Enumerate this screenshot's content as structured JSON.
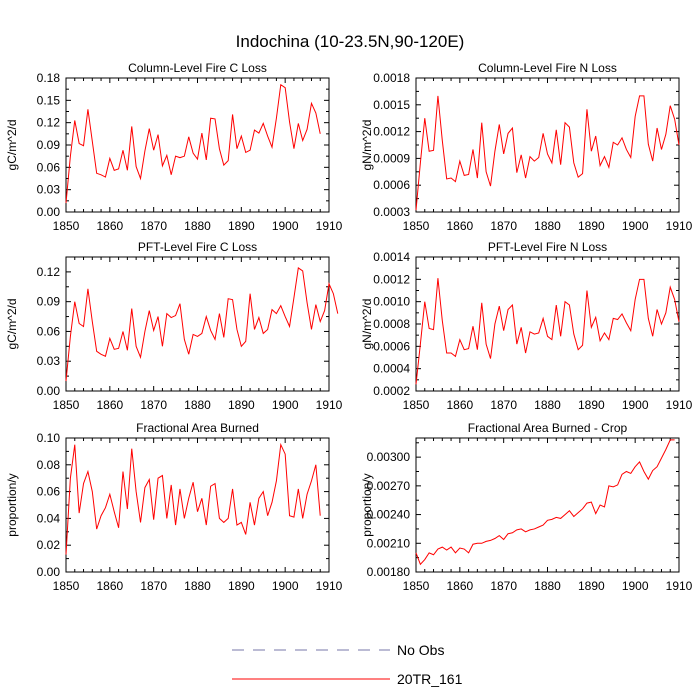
{
  "figure_title": "Indochina (10-23.5N,90-120E)",
  "legend": {
    "items": [
      {
        "label": "No Obs",
        "style": "dashed",
        "color": "#7777aa"
      },
      {
        "label": "20TR_161",
        "style": "solid",
        "color": "#ff0000"
      }
    ]
  },
  "chart_data": [
    {
      "type": "line",
      "title": "Column-Level Fire C Loss",
      "xlabel": "",
      "ylabel": "gC/m^2/d",
      "xlim": [
        1850,
        1910
      ],
      "ylim": [
        0,
        0.18
      ],
      "xticks": [
        1850,
        1860,
        1870,
        1880,
        1890,
        1900,
        1910
      ],
      "xtick_labels": [
        "1850",
        "1860",
        "1870",
        "1880",
        "1890",
        "1900",
        "1910"
      ],
      "yticks": [
        0,
        0.03,
        0.06,
        0.09,
        0.12,
        0.15,
        0.18
      ],
      "ytick_labels": [
        "0.00",
        "0.03",
        "0.06",
        "0.09",
        "0.12",
        "0.15",
        "0.18"
      ],
      "x_start": 1850,
      "series": [
        {
          "name": "20TR_161",
          "color": "#ff0000",
          "values": [
            0.012,
            0.075,
            0.123,
            0.092,
            0.089,
            0.138,
            0.095,
            0.052,
            0.05,
            0.047,
            0.072,
            0.056,
            0.058,
            0.083,
            0.056,
            0.115,
            0.061,
            0.045,
            0.082,
            0.112,
            0.083,
            0.104,
            0.062,
            0.076,
            0.05,
            0.075,
            0.073,
            0.075,
            0.101,
            0.079,
            0.071,
            0.106,
            0.07,
            0.126,
            0.125,
            0.085,
            0.063,
            0.069,
            0.131,
            0.085,
            0.102,
            0.08,
            0.083,
            0.11,
            0.106,
            0.119,
            0.102,
            0.087,
            0.126,
            0.171,
            0.167,
            0.121,
            0.085,
            0.119,
            0.096,
            0.111,
            0.146,
            0.133,
            0.105
          ]
        }
      ]
    },
    {
      "type": "line",
      "title": "Column-Level Fire N Loss",
      "xlabel": "",
      "ylabel": "gN/m^2/d",
      "xlim": [
        1850,
        1910
      ],
      "ylim": [
        0.0003,
        0.0018
      ],
      "xticks": [
        1850,
        1860,
        1870,
        1880,
        1890,
        1900,
        1910
      ],
      "xtick_labels": [
        "1850",
        "1860",
        "1870",
        "1880",
        "1890",
        "1900",
        "1910"
      ],
      "yticks": [
        0.0003,
        0.0006,
        0.0009,
        0.0012,
        0.0015,
        0.0018
      ],
      "ytick_labels": [
        "0.0003",
        "0.0006",
        "0.0009",
        "0.0012",
        "0.0015",
        "0.0018"
      ],
      "x_start": 1850,
      "series": [
        {
          "name": "20TR_161",
          "color": "#ff0000",
          "values": [
            0.00032,
            0.00085,
            0.00135,
            0.00098,
            0.00099,
            0.0016,
            0.0011,
            0.00067,
            0.00068,
            0.00064,
            0.00087,
            0.00071,
            0.00072,
            0.001,
            0.00068,
            0.0013,
            0.00075,
            0.00059,
            0.00098,
            0.00128,
            0.00095,
            0.00118,
            0.00124,
            0.00074,
            0.00094,
            0.00068,
            0.00092,
            0.00087,
            0.00091,
            0.00118,
            0.00095,
            0.00085,
            0.00122,
            0.00083,
            0.0013,
            0.00125,
            0.00085,
            0.00069,
            0.00073,
            0.00145,
            0.00098,
            0.00115,
            0.00082,
            0.00092,
            0.0008,
            0.00108,
            0.00105,
            0.00113,
            0.001,
            0.00091,
            0.00137,
            0.0016,
            0.0016,
            0.00106,
            0.00087,
            0.00124,
            0.001,
            0.00117,
            0.00149,
            0.00134,
            0.00105
          ]
        }
      ]
    },
    {
      "type": "line",
      "title": "PFT-Level Fire C Loss",
      "xlabel": "",
      "ylabel": "gC/m^2/d",
      "xlim": [
        1850,
        1910
      ],
      "ylim": [
        0,
        0.135
      ],
      "xticks": [
        1850,
        1860,
        1870,
        1880,
        1890,
        1900,
        1910
      ],
      "xtick_labels": [
        "1850",
        "1860",
        "1870",
        "1880",
        "1890",
        "1900",
        "1910"
      ],
      "yticks": [
        0,
        0.03,
        0.06,
        0.09,
        0.12
      ],
      "ytick_labels": [
        "0.00",
        "0.03",
        "0.06",
        "0.09",
        "0.12"
      ],
      "x_start": 1850,
      "series": [
        {
          "name": "20TR_161",
          "color": "#ff0000",
          "values": [
            0.01,
            0.055,
            0.09,
            0.068,
            0.065,
            0.103,
            0.07,
            0.04,
            0.037,
            0.035,
            0.053,
            0.042,
            0.043,
            0.06,
            0.041,
            0.083,
            0.045,
            0.034,
            0.06,
            0.081,
            0.061,
            0.075,
            0.045,
            0.078,
            0.074,
            0.076,
            0.088,
            0.052,
            0.037,
            0.057,
            0.055,
            0.058,
            0.075,
            0.061,
            0.052,
            0.078,
            0.054,
            0.093,
            0.092,
            0.062,
            0.045,
            0.05,
            0.098,
            0.062,
            0.074,
            0.058,
            0.062,
            0.082,
            0.078,
            0.086,
            0.075,
            0.065,
            0.094,
            0.124,
            0.121,
            0.089,
            0.062,
            0.087,
            0.07,
            0.081,
            0.108,
            0.098,
            0.078
          ]
        }
      ]
    },
    {
      "type": "line",
      "title": "PFT-Level Fire N Loss",
      "xlabel": "",
      "ylabel": "gN/m^2/d",
      "xlim": [
        1850,
        1910
      ],
      "ylim": [
        0.0002,
        0.0014
      ],
      "xticks": [
        1850,
        1860,
        1870,
        1880,
        1890,
        1900,
        1910
      ],
      "xtick_labels": [
        "1850",
        "1860",
        "1870",
        "1880",
        "1890",
        "1900",
        "1910"
      ],
      "yticks": [
        0.0002,
        0.0004,
        0.0006,
        0.0008,
        0.001,
        0.0012,
        0.0014
      ],
      "ytick_labels": [
        "0.0002",
        "0.0004",
        "0.0006",
        "0.0008",
        "0.0010",
        "0.0012",
        "0.0014"
      ],
      "x_start": 1850,
      "series": [
        {
          "name": "20TR_161",
          "color": "#ff0000",
          "values": [
            0.00026,
            0.00062,
            0.001,
            0.00076,
            0.00075,
            0.00121,
            0.00083,
            0.00054,
            0.00054,
            0.00051,
            0.00066,
            0.00057,
            0.00058,
            0.00078,
            0.00057,
            0.00099,
            0.00062,
            0.00049,
            0.0008,
            0.00096,
            0.00074,
            0.00093,
            0.00097,
            0.00062,
            0.00077,
            0.00054,
            0.00073,
            0.00071,
            0.00072,
            0.00085,
            0.00069,
            0.00066,
            0.00097,
            0.00069,
            0.001,
            0.00097,
            0.00071,
            0.00057,
            0.00061,
            0.0011,
            0.00077,
            0.00086,
            0.00065,
            0.00072,
            0.00066,
            0.00085,
            0.00084,
            0.00089,
            0.00081,
            0.00074,
            0.00102,
            0.0012,
            0.0012,
            0.00085,
            0.00069,
            0.00093,
            0.0008,
            0.0009,
            0.00113,
            0.00102,
            0.00082
          ]
        }
      ]
    },
    {
      "type": "line",
      "title": "Fractional Area Burned",
      "xlabel": "",
      "ylabel": "proportion/y",
      "xlim": [
        1850,
        1910
      ],
      "ylim": [
        0,
        0.1
      ],
      "xticks": [
        1850,
        1860,
        1870,
        1880,
        1890,
        1900,
        1910
      ],
      "xtick_labels": [
        "1850",
        "1860",
        "1870",
        "1880",
        "1890",
        "1900",
        "1910"
      ],
      "yticks": [
        0,
        0.02,
        0.04,
        0.06,
        0.08,
        0.1
      ],
      "ytick_labels": [
        "0.00",
        "0.02",
        "0.04",
        "0.06",
        "0.08",
        "0.10"
      ],
      "x_start": 1850,
      "series": [
        {
          "name": "20TR_161",
          "color": "#ff0000",
          "values": [
            0.013,
            0.07,
            0.095,
            0.044,
            0.066,
            0.075,
            0.06,
            0.032,
            0.042,
            0.048,
            0.058,
            0.045,
            0.033,
            0.075,
            0.047,
            0.092,
            0.06,
            0.037,
            0.063,
            0.069,
            0.039,
            0.07,
            0.072,
            0.04,
            0.065,
            0.035,
            0.062,
            0.04,
            0.055,
            0.067,
            0.045,
            0.055,
            0.035,
            0.064,
            0.066,
            0.04,
            0.037,
            0.04,
            0.062,
            0.035,
            0.037,
            0.028,
            0.052,
            0.035,
            0.055,
            0.06,
            0.042,
            0.052,
            0.068,
            0.095,
            0.088,
            0.042,
            0.041,
            0.062,
            0.04,
            0.058,
            0.068,
            0.08,
            0.042
          ]
        }
      ]
    },
    {
      "type": "line",
      "title": "Fractional Area Burned - Crop",
      "xlabel": "",
      "ylabel": "proportion/y",
      "xlim": [
        1850,
        1910
      ],
      "ylim": [
        0.0018,
        0.0032
      ],
      "xticks": [
        1850,
        1860,
        1870,
        1880,
        1890,
        1900,
        1910
      ],
      "xtick_labels": [
        "1850",
        "1860",
        "1870",
        "1880",
        "1890",
        "1900",
        "1910"
      ],
      "yticks": [
        0.0018,
        0.0021,
        0.0024,
        0.0027,
        0.003
      ],
      "ytick_labels": [
        "0.00180",
        "0.00210",
        "0.00240",
        "0.00270",
        "0.00300"
      ],
      "x_start": 1850,
      "series": [
        {
          "name": "20TR_161",
          "color": "#ff0000",
          "values": [
            0.002,
            0.00188,
            0.00193,
            0.002,
            0.00198,
            0.00204,
            0.00206,
            0.00203,
            0.00206,
            0.002,
            0.00205,
            0.00204,
            0.002,
            0.00209,
            0.0021,
            0.0021,
            0.00212,
            0.00213,
            0.00215,
            0.00218,
            0.00214,
            0.0022,
            0.00221,
            0.00224,
            0.00225,
            0.00222,
            0.00224,
            0.00225,
            0.00227,
            0.00229,
            0.00234,
            0.00235,
            0.00237,
            0.00236,
            0.0024,
            0.00244,
            0.00238,
            0.00242,
            0.00246,
            0.00252,
            0.00253,
            0.00241,
            0.0025,
            0.00248,
            0.0027,
            0.00269,
            0.00271,
            0.00282,
            0.00285,
            0.00283,
            0.0029,
            0.00295,
            0.00285,
            0.00277,
            0.00286,
            0.0029,
            0.00299,
            0.00308,
            0.00318,
            0.00318
          ]
        }
      ]
    }
  ]
}
